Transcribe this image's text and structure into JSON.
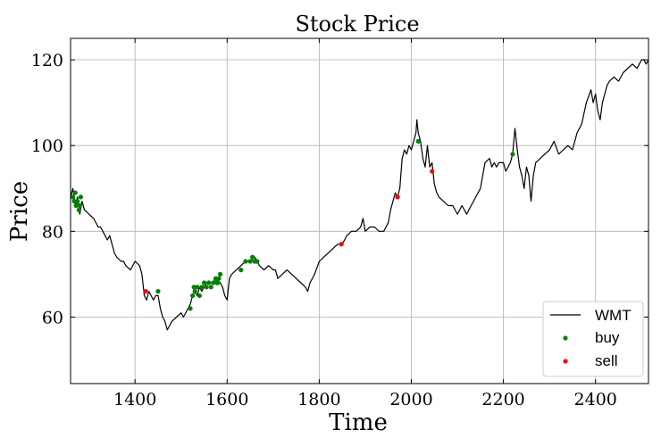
{
  "chart_data": {
    "type": "line",
    "title": "Stock Price",
    "xlabel": "Time",
    "ylabel": "Price",
    "xlim": [
      1260,
      2515
    ],
    "ylim": [
      44.5,
      125
    ],
    "xticks": [
      1400,
      1600,
      1800,
      2000,
      2200,
      2400
    ],
    "yticks": [
      60,
      80,
      100,
      120
    ],
    "grid": true,
    "legend_position": "lower-right",
    "colors": {
      "line": "#000000",
      "buy": "#008000",
      "sell": "#ff0000",
      "grid": "#b0b0b0"
    },
    "legend": {
      "line_label": "WMT",
      "buy_label": "buy",
      "sell_label": "sell"
    },
    "series": [
      {
        "name": "WMT",
        "x": [
          1260,
          1265,
          1270,
          1275,
          1280,
          1285,
          1290,
          1300,
          1310,
          1320,
          1325,
          1330,
          1340,
          1345,
          1350,
          1355,
          1360,
          1370,
          1375,
          1380,
          1390,
          1400,
          1410,
          1415,
          1418,
          1420,
          1425,
          1430,
          1440,
          1445,
          1450,
          1455,
          1460,
          1465,
          1470,
          1475,
          1480,
          1490,
          1500,
          1505,
          1510,
          1515,
          1520,
          1525,
          1530,
          1535,
          1540,
          1545,
          1550,
          1555,
          1560,
          1565,
          1570,
          1575,
          1580,
          1585,
          1590,
          1595,
          1600,
          1602,
          1605,
          1610,
          1620,
          1630,
          1640,
          1650,
          1660,
          1665,
          1670,
          1680,
          1690,
          1700,
          1705,
          1710,
          1720,
          1730,
          1740,
          1750,
          1760,
          1770,
          1775,
          1780,
          1790,
          1800,
          1810,
          1820,
          1830,
          1840,
          1850,
          1860,
          1870,
          1880,
          1890,
          1895,
          1900,
          1910,
          1920,
          1930,
          1940,
          1950,
          1955,
          1960,
          1965,
          1970,
          1975,
          1980,
          1985,
          1990,
          1995,
          2000,
          2005,
          2010,
          2012,
          2015,
          2020,
          2025,
          2030,
          2035,
          2040,
          2045,
          2050,
          2055,
          2060,
          2070,
          2080,
          2090,
          2100,
          2110,
          2120,
          2125,
          2130,
          2140,
          2150,
          2160,
          2170,
          2175,
          2180,
          2185,
          2190,
          2200,
          2205,
          2210,
          2215,
          2220,
          2225,
          2230,
          2235,
          2240,
          2245,
          2250,
          2255,
          2260,
          2265,
          2270,
          2280,
          2290,
          2300,
          2310,
          2320,
          2330,
          2340,
          2350,
          2360,
          2370,
          2380,
          2390,
          2395,
          2400,
          2405,
          2410,
          2415,
          2420,
          2425,
          2430,
          2440,
          2450,
          2460,
          2470,
          2480,
          2490,
          2495,
          2500,
          2505,
          2510,
          2515
        ],
        "y": [
          88,
          90,
          86,
          88,
          84,
          87,
          85,
          84,
          83,
          81,
          81,
          80,
          78,
          79,
          77,
          75,
          74,
          73,
          73,
          72,
          71,
          73,
          72,
          70,
          67,
          65,
          64,
          66,
          64,
          65,
          65,
          62,
          60,
          59,
          57,
          58,
          59,
          60,
          61,
          60,
          61,
          62,
          63,
          65,
          66,
          65,
          67,
          66,
          67,
          68,
          68,
          68,
          68,
          69,
          68,
          68,
          67,
          65,
          64,
          66,
          69,
          70,
          71,
          72,
          73,
          73,
          74,
          73,
          72,
          71,
          72,
          71,
          71,
          69,
          70,
          71,
          70,
          69,
          68,
          67,
          66,
          68,
          70,
          73,
          74,
          75,
          76,
          77,
          77,
          79,
          80,
          80,
          81,
          83,
          80,
          81,
          81,
          80,
          80,
          82,
          85,
          87,
          89,
          88,
          90,
          97,
          99,
          98,
          100,
          99,
          101,
          103,
          106,
          103,
          101,
          97,
          95,
          100,
          95,
          96,
          91,
          89,
          88,
          87,
          86,
          86,
          84,
          86,
          84,
          85,
          86,
          88,
          90,
          96,
          97,
          95,
          96,
          95,
          96,
          96,
          94,
          95,
          96,
          98,
          104,
          99,
          95,
          93,
          90,
          95,
          93,
          87,
          93,
          96,
          97,
          98,
          99,
          101,
          98,
          99,
          100,
          99,
          103,
          105,
          110,
          113,
          110,
          112,
          108,
          106,
          110,
          112,
          114,
          115,
          116,
          115,
          117,
          118,
          119,
          118,
          119,
          120,
          120,
          119,
          120
        ]
      },
      {
        "name": "buy",
        "x": [
          1265,
          1268,
          1270,
          1272,
          1275,
          1278,
          1280,
          1282,
          1450,
          1520,
          1525,
          1528,
          1530,
          1535,
          1540,
          1545,
          1550,
          1555,
          1560,
          1565,
          1570,
          1575,
          1578,
          1580,
          1582,
          1585,
          1630,
          1640,
          1650,
          1655,
          1660,
          1665,
          1970,
          2015,
          2220
        ],
        "y": [
          88,
          87,
          89,
          86,
          87,
          85,
          86,
          88,
          66,
          62,
          65,
          67,
          66,
          67,
          65,
          67,
          68,
          67,
          68,
          67,
          68,
          69,
          68,
          68,
          69,
          70,
          71,
          73,
          73,
          74,
          73,
          73,
          88,
          101,
          98
        ]
      },
      {
        "name": "sell",
        "x": [
          1423,
          1848,
          1970,
          2045
        ],
        "y": [
          66,
          77,
          88,
          94
        ]
      }
    ]
  }
}
